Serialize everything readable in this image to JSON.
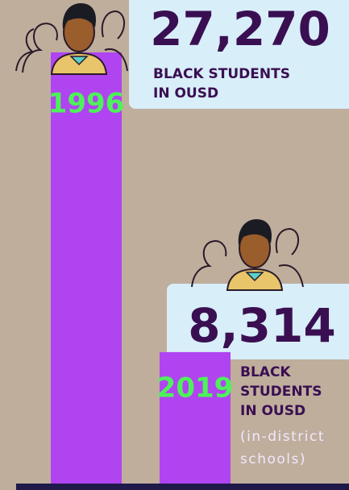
{
  "chart_data": {
    "type": "bar",
    "categories": [
      "1996",
      "2019"
    ],
    "values": [
      27270,
      8314
    ],
    "value_labels": [
      "27,270",
      "8,314"
    ],
    "annotations": [
      [
        "BLACK STUDENTS",
        "IN OUSD"
      ],
      [
        "BLACK",
        "STUDENTS",
        "IN OUSD"
      ]
    ],
    "footnote": [
      "(in-district",
      "schools)"
    ],
    "color": "#b044f0"
  }
}
